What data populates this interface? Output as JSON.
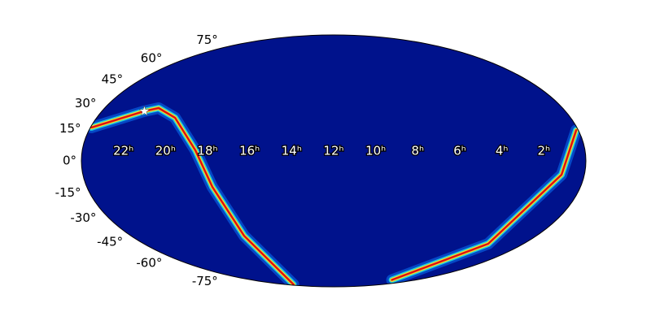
{
  "chart_data": {
    "type": "mollweide",
    "yticks": [
      {
        "value": -75,
        "label": "-75°"
      },
      {
        "value": -60,
        "label": "-60°"
      },
      {
        "value": -45,
        "label": "-45°"
      },
      {
        "value": -30,
        "label": "-30°"
      },
      {
        "value": -15,
        "label": "-15°"
      },
      {
        "value": 0,
        "label": "0°"
      },
      {
        "value": 15,
        "label": "15°"
      },
      {
        "value": 30,
        "label": "30°"
      },
      {
        "value": 45,
        "label": "45°"
      },
      {
        "value": 60,
        "label": "60°"
      },
      {
        "value": 75,
        "label": "75°"
      }
    ],
    "xticks": [
      {
        "value": 22,
        "label": "22ʰ"
      },
      {
        "value": 20,
        "label": "20ʰ"
      },
      {
        "value": 18,
        "label": "18ʰ"
      },
      {
        "value": 16,
        "label": "16ʰ"
      },
      {
        "value": 14,
        "label": "14ʰ"
      },
      {
        "value": 12,
        "label": "12ʰ"
      },
      {
        "value": 10,
        "label": "10ʰ"
      },
      {
        "value": 8,
        "label": "8ʰ"
      },
      {
        "value": 6,
        "label": "6ʰ"
      },
      {
        "value": 4,
        "label": "4ʰ"
      },
      {
        "value": 2,
        "label": "2ʰ"
      }
    ],
    "xlim": [
      24,
      0
    ],
    "ylim": [
      -90,
      90
    ],
    "background": "#00128c",
    "series": [
      {
        "x": [
          0.1,
          1.09,
          2.23,
          3.5,
          null,
          21.9,
          17.3,
          17.9,
          18.6,
          20.03,
          21.17,
          21.8,
          23.95
        ],
        "values": [
          17.9,
          -8,
          -50.6,
          -80,
          null,
          -85.5,
          -45.2,
          -15.1,
          6.1,
          25.3,
          31.2,
          29.3,
          19.5
        ]
      }
    ],
    "marker": {
      "x": 21.8,
      "y": 29.3,
      "color": "#ffffff"
    }
  }
}
